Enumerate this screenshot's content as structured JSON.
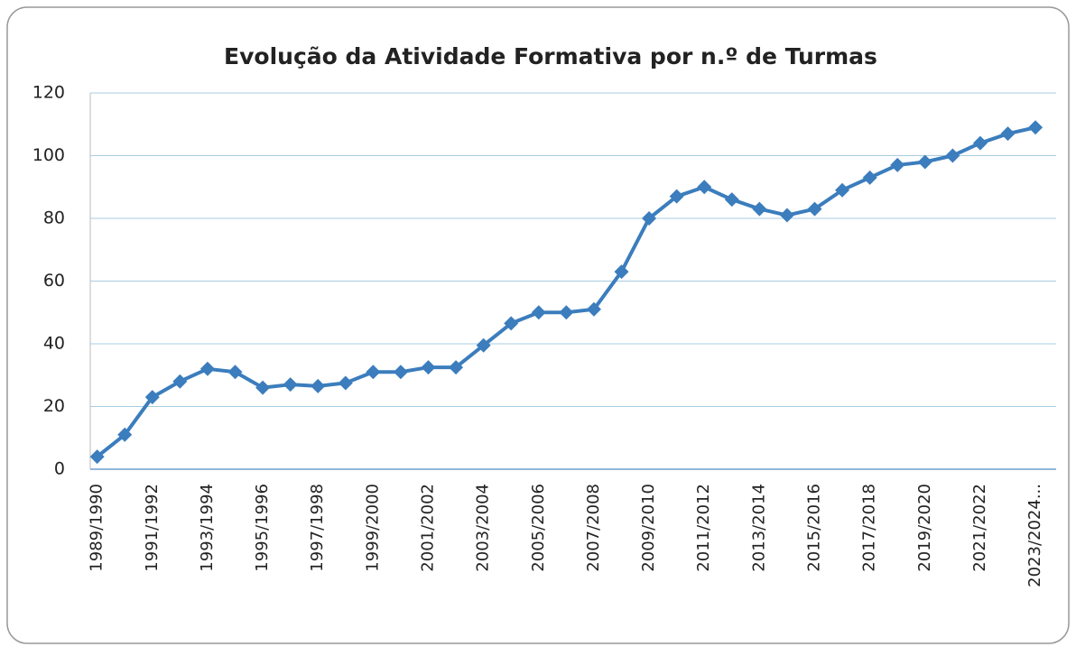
{
  "chart_data": {
    "type": "line",
    "title": "Evolução da Atividade Formativa por n.º de Turmas",
    "categories": [
      "1989/1990",
      null,
      "1991/1992",
      null,
      "1993/1994",
      null,
      "1995/1996",
      null,
      "1997/1998",
      null,
      "1999/2000",
      null,
      "2001/2002",
      null,
      "2003/2004",
      null,
      "2005/2006",
      null,
      "2007/2008",
      null,
      "2009/2010",
      null,
      "2011/2012",
      null,
      "2013/2014",
      null,
      "2015/2016",
      null,
      "2017/2018",
      null,
      "2019/2020",
      null,
      "2021/2022",
      null,
      "2023/2024..."
    ],
    "values": [
      4,
      11,
      23,
      28,
      32,
      31,
      26,
      27,
      26.5,
      27.5,
      31,
      31,
      32.5,
      32.5,
      39.5,
      46.5,
      50,
      50,
      51,
      63,
      80,
      87,
      90,
      86,
      83,
      81,
      83,
      89,
      93,
      97,
      98,
      100,
      104,
      107,
      109
    ],
    "color": "#3b7dbd",
    "ylim": [
      0,
      120
    ],
    "yticks": [
      0,
      20,
      40,
      60,
      80,
      100,
      120
    ],
    "grid": true
  }
}
